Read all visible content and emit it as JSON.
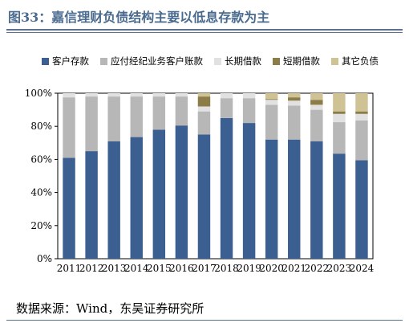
{
  "figure": {
    "title": "图33：嘉信理财负债结构主要以低息存款为主",
    "source": "数据来源：Wind，东吴证券研究所"
  },
  "chart_data": {
    "type": "bar",
    "stacked": true,
    "categories": [
      "2011",
      "2012",
      "2013",
      "2014",
      "2015",
      "2016",
      "2017",
      "2018",
      "2019",
      "2020",
      "2021",
      "2022",
      "2023",
      "2024"
    ],
    "series": [
      {
        "name": "客户存款",
        "color": "#3c5f91",
        "values": [
          61,
          65,
          71,
          73.5,
          78,
          80.5,
          75,
          85,
          82,
          72,
          72,
          71,
          63.5,
          59.5
        ]
      },
      {
        "name": "应付经纪业务客户账款",
        "color": "#b7b7b7",
        "values": [
          36.5,
          33,
          27,
          24.5,
          20,
          17.5,
          14,
          12,
          15,
          21,
          20.5,
          19,
          19,
          24
        ]
      },
      {
        "name": "长期借款",
        "color": "#e1e1e1",
        "values": [
          2.5,
          2,
          2,
          2,
          2,
          2,
          3,
          3,
          3,
          3,
          3,
          3,
          5,
          4
        ]
      },
      {
        "name": "短期借款",
        "color": "#8c7c48",
        "values": [
          0,
          0,
          0,
          0,
          0,
          0,
          6,
          0,
          0,
          0.5,
          2,
          3,
          1.5,
          1.5
        ]
      },
      {
        "name": "其它负债",
        "color": "#cfc396",
        "values": [
          0,
          0,
          0,
          0,
          0,
          0,
          2,
          0,
          0,
          3.5,
          2.5,
          4,
          11,
          11
        ]
      }
    ],
    "ylim": [
      0,
      100
    ],
    "yticks": [
      "0%",
      "20%",
      "40%",
      "60%",
      "80%",
      "100%"
    ],
    "legend_position": "top",
    "grid": false
  }
}
